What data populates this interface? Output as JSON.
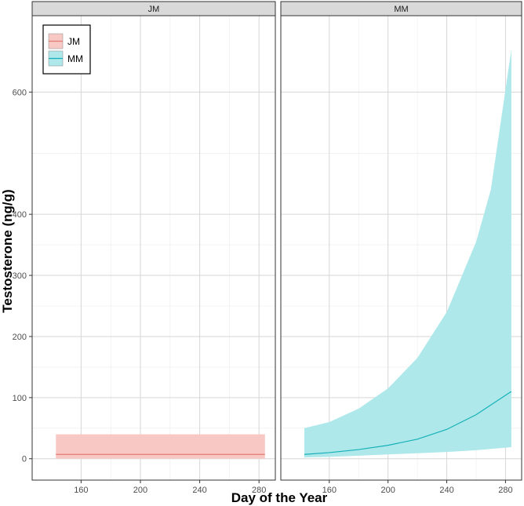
{
  "chart_data": {
    "type": "area",
    "xlabel": "Day of the Year",
    "ylabel": "Testosterone (ng/g)",
    "x_ticks": [
      160,
      200,
      240,
      280
    ],
    "y_ticks": [
      0,
      100,
      200,
      300,
      400,
      600
    ],
    "xlim": [
      127,
      291
    ],
    "ylim": [
      -35,
      725
    ],
    "grid": true,
    "legend_position": "top-left",
    "legend": [
      {
        "label": "JM",
        "fill": "#f8c8c4",
        "line": "#e07b71"
      },
      {
        "label": "MM",
        "fill": "#aee8ea",
        "line": "#16b1b8"
      }
    ],
    "panels": [
      {
        "label": "JM",
        "series": [
          {
            "name": "JM",
            "x": [
              143,
              284
            ],
            "fit": [
              7,
              7
            ],
            "lower": [
              0,
              0
            ],
            "upper": [
              40,
              40
            ]
          }
        ]
      },
      {
        "label": "MM",
        "series": [
          {
            "name": "MM",
            "x": [
              143,
              160,
              180,
              200,
              220,
              240,
              260,
              270,
              284
            ],
            "fit": [
              7,
              10,
              15,
              22,
              32,
              48,
              72,
              88,
              110
            ],
            "lower": [
              2,
              3,
              5,
              7,
              9,
              11,
              14,
              16,
              19
            ],
            "upper": [
              50,
              60,
              82,
              115,
              165,
              240,
              355,
              440,
              670
            ]
          }
        ]
      }
    ]
  }
}
